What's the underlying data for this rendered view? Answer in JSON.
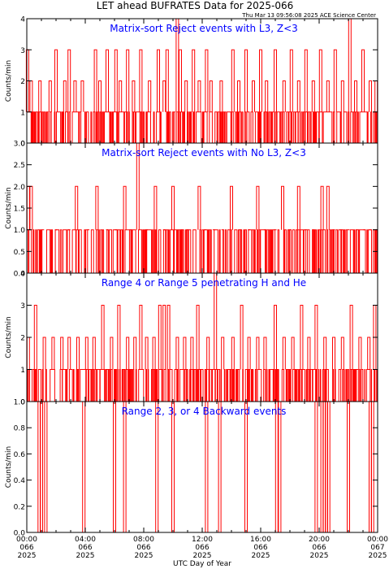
{
  "header": {
    "title": "LET ahead BUFRATES Data for 2025-066",
    "timestamp": "Thu Mar 13 09:56:08 2025 ACE Science Center"
  },
  "colors": {
    "data": "#ff0000",
    "panel_title": "#0000ff",
    "axis": "#000000",
    "background": "#ffffff"
  },
  "chart_data": [
    {
      "type": "line",
      "title": "Matrix-sort Reject events with L3, Z<3",
      "ylabel": "Counts/min",
      "ylim": [
        0,
        4
      ],
      "yticks": [
        "0",
        "1",
        "2",
        "3",
        "4"
      ],
      "xlim": [
        0,
        24
      ],
      "grid": false,
      "series": [
        {
          "baseline": 1,
          "baseline_range": [
            0,
            1
          ],
          "spikes": [
            {
              "x": 0.05,
              "y": 3
            },
            {
              "x": 0.3,
              "y": 2
            },
            {
              "x": 0.9,
              "y": 2
            },
            {
              "x": 1.6,
              "y": 2
            },
            {
              "x": 2.0,
              "y": 3
            },
            {
              "x": 2.6,
              "y": 2
            },
            {
              "x": 2.9,
              "y": 3
            },
            {
              "x": 3.3,
              "y": 2
            },
            {
              "x": 3.8,
              "y": 2
            },
            {
              "x": 4.7,
              "y": 3
            },
            {
              "x": 5.0,
              "y": 2
            },
            {
              "x": 5.5,
              "y": 3
            },
            {
              "x": 6.1,
              "y": 3
            },
            {
              "x": 6.4,
              "y": 2
            },
            {
              "x": 6.9,
              "y": 3
            },
            {
              "x": 7.3,
              "y": 2
            },
            {
              "x": 7.8,
              "y": 3
            },
            {
              "x": 8.4,
              "y": 2
            },
            {
              "x": 9.0,
              "y": 3
            },
            {
              "x": 9.4,
              "y": 2
            },
            {
              "x": 9.6,
              "y": 3
            },
            {
              "x": 10.3,
              "y": 4
            },
            {
              "x": 10.5,
              "y": 3
            },
            {
              "x": 10.9,
              "y": 2
            },
            {
              "x": 11.4,
              "y": 3
            },
            {
              "x": 11.8,
              "y": 2
            },
            {
              "x": 12.3,
              "y": 3
            },
            {
              "x": 12.6,
              "y": 2
            },
            {
              "x": 13.3,
              "y": 2
            },
            {
              "x": 14.1,
              "y": 3
            },
            {
              "x": 14.5,
              "y": 2
            },
            {
              "x": 15.0,
              "y": 3
            },
            {
              "x": 15.5,
              "y": 2
            },
            {
              "x": 16.0,
              "y": 3
            },
            {
              "x": 16.4,
              "y": 2
            },
            {
              "x": 17.0,
              "y": 3
            },
            {
              "x": 17.6,
              "y": 2
            },
            {
              "x": 18.1,
              "y": 3
            },
            {
              "x": 18.6,
              "y": 2
            },
            {
              "x": 19.1,
              "y": 3
            },
            {
              "x": 19.6,
              "y": 2
            },
            {
              "x": 20.1,
              "y": 3
            },
            {
              "x": 20.6,
              "y": 2
            },
            {
              "x": 21.1,
              "y": 3
            },
            {
              "x": 21.6,
              "y": 2
            },
            {
              "x": 22.1,
              "y": 4
            },
            {
              "x": 22.5,
              "y": 2
            },
            {
              "x": 23.0,
              "y": 3
            },
            {
              "x": 23.5,
              "y": 2
            },
            {
              "x": 23.9,
              "y": 2
            }
          ]
        }
      ]
    },
    {
      "type": "line",
      "title": "Matrix-sort Reject events with No L3, Z<3",
      "ylabel": "Counts/min",
      "ylim": [
        0,
        3
      ],
      "yticks": [
        "0.0",
        "0.5",
        "1.0",
        "1.5",
        "2.0",
        "2.5",
        "3.0"
      ],
      "xlim": [
        0,
        24
      ],
      "grid": false,
      "series": [
        {
          "baseline": 1,
          "baseline_range": [
            0,
            1
          ],
          "spikes": [
            {
              "x": 0.1,
              "y": 2
            },
            {
              "x": 0.3,
              "y": 2
            },
            {
              "x": 1.1,
              "y": 1
            },
            {
              "x": 2.0,
              "y": 1
            },
            {
              "x": 2.9,
              "y": 1
            },
            {
              "x": 3.4,
              "y": 2
            },
            {
              "x": 4.2,
              "y": 1
            },
            {
              "x": 4.8,
              "y": 2
            },
            {
              "x": 5.5,
              "y": 1
            },
            {
              "x": 6.1,
              "y": 1
            },
            {
              "x": 6.7,
              "y": 2
            },
            {
              "x": 7.1,
              "y": 1
            },
            {
              "x": 7.6,
              "y": 3
            },
            {
              "x": 8.2,
              "y": 1
            },
            {
              "x": 8.8,
              "y": 2
            },
            {
              "x": 9.4,
              "y": 1
            },
            {
              "x": 10.0,
              "y": 2
            },
            {
              "x": 10.6,
              "y": 1
            },
            {
              "x": 11.0,
              "y": 1
            },
            {
              "x": 11.8,
              "y": 2
            },
            {
              "x": 12.2,
              "y": 1
            },
            {
              "x": 12.8,
              "y": 1
            },
            {
              "x": 13.4,
              "y": 1
            },
            {
              "x": 14.0,
              "y": 2
            },
            {
              "x": 14.6,
              "y": 1
            },
            {
              "x": 15.2,
              "y": 1
            },
            {
              "x": 15.8,
              "y": 2
            },
            {
              "x": 16.3,
              "y": 1
            },
            {
              "x": 17.0,
              "y": 1
            },
            {
              "x": 17.5,
              "y": 2
            },
            {
              "x": 18.0,
              "y": 1
            },
            {
              "x": 18.6,
              "y": 2
            },
            {
              "x": 19.1,
              "y": 1
            },
            {
              "x": 19.6,
              "y": 1
            },
            {
              "x": 20.2,
              "y": 2
            },
            {
              "x": 20.6,
              "y": 2
            },
            {
              "x": 21.0,
              "y": 1
            },
            {
              "x": 21.5,
              "y": 1
            },
            {
              "x": 22.0,
              "y": 1
            },
            {
              "x": 22.6,
              "y": 1
            },
            {
              "x": 23.1,
              "y": 1
            },
            {
              "x": 23.5,
              "y": 1
            },
            {
              "x": 23.9,
              "y": 1
            }
          ]
        }
      ]
    },
    {
      "type": "line",
      "title": "Range 4 or Range 5 penetrating H and He",
      "ylabel": "Counts/min",
      "ylim": [
        0,
        4
      ],
      "yticks": [
        "0",
        "1",
        "2",
        "3",
        "4"
      ],
      "xlim": [
        0,
        24
      ],
      "grid": false,
      "series": [
        {
          "baseline": 1,
          "baseline_range": [
            0,
            1
          ],
          "spikes": [
            {
              "x": 0.1,
              "y": 2
            },
            {
              "x": 0.6,
              "y": 3
            },
            {
              "x": 1.2,
              "y": 2
            },
            {
              "x": 1.8,
              "y": 2
            },
            {
              "x": 2.4,
              "y": 2
            },
            {
              "x": 2.9,
              "y": 2
            },
            {
              "x": 3.5,
              "y": 2
            },
            {
              "x": 4.1,
              "y": 2
            },
            {
              "x": 4.6,
              "y": 2
            },
            {
              "x": 5.2,
              "y": 3
            },
            {
              "x": 5.8,
              "y": 2
            },
            {
              "x": 6.3,
              "y": 3
            },
            {
              "x": 6.9,
              "y": 2
            },
            {
              "x": 7.4,
              "y": 2
            },
            {
              "x": 7.8,
              "y": 3
            },
            {
              "x": 8.2,
              "y": 2
            },
            {
              "x": 8.7,
              "y": 2
            },
            {
              "x": 9.1,
              "y": 3
            },
            {
              "x": 9.4,
              "y": 3
            },
            {
              "x": 9.7,
              "y": 3
            },
            {
              "x": 10.3,
              "y": 2
            },
            {
              "x": 10.8,
              "y": 2
            },
            {
              "x": 11.3,
              "y": 2
            },
            {
              "x": 11.7,
              "y": 3
            },
            {
              "x": 12.4,
              "y": 2
            },
            {
              "x": 12.9,
              "y": 4
            },
            {
              "x": 13.4,
              "y": 2
            },
            {
              "x": 14.1,
              "y": 2
            },
            {
              "x": 14.7,
              "y": 3
            },
            {
              "x": 15.2,
              "y": 2
            },
            {
              "x": 15.8,
              "y": 2
            },
            {
              "x": 16.3,
              "y": 2
            },
            {
              "x": 17.0,
              "y": 3
            },
            {
              "x": 17.6,
              "y": 2
            },
            {
              "x": 18.2,
              "y": 2
            },
            {
              "x": 18.8,
              "y": 3
            },
            {
              "x": 19.3,
              "y": 2
            },
            {
              "x": 19.8,
              "y": 3
            },
            {
              "x": 20.4,
              "y": 2
            },
            {
              "x": 21.0,
              "y": 2
            },
            {
              "x": 21.6,
              "y": 2
            },
            {
              "x": 22.2,
              "y": 3
            },
            {
              "x": 22.8,
              "y": 2
            },
            {
              "x": 23.4,
              "y": 2
            },
            {
              "x": 23.8,
              "y": 3
            }
          ]
        }
      ]
    },
    {
      "type": "line",
      "title": "Range 2, 3, or 4 Backward events",
      "ylabel": "Counts/min",
      "ylim": [
        0,
        1
      ],
      "yticks": [
        "0.0",
        "0.2",
        "0.4",
        "0.6",
        "0.8",
        "1.0"
      ],
      "xlim": [
        0,
        24
      ],
      "xlabel": "UTC Day of Year",
      "xticks": [
        {
          "time": "00:00",
          "day": "066",
          "year": "2025"
        },
        {
          "time": "04:00",
          "day": "066",
          "year": "2025"
        },
        {
          "time": "08:00",
          "day": "066",
          "year": "2025"
        },
        {
          "time": "12:00",
          "day": "066",
          "year": "2025"
        },
        {
          "time": "16:00",
          "day": "066",
          "year": "2025"
        },
        {
          "time": "20:00",
          "day": "066",
          "year": "2025"
        },
        {
          "time": "00:00",
          "day": "067",
          "year": "2025"
        }
      ],
      "grid": false,
      "series": [
        {
          "baseline": 0,
          "spikes": [
            {
              "x": 0.85,
              "y": 1
            },
            {
              "x": 1.0,
              "y": 1
            },
            {
              "x": 1.3,
              "y": 1
            },
            {
              "x": 3.9,
              "y": 1
            },
            {
              "x": 6.0,
              "y": 1
            },
            {
              "x": 6.7,
              "y": 1
            },
            {
              "x": 8.9,
              "y": 1
            },
            {
              "x": 10.0,
              "y": 1
            },
            {
              "x": 12.3,
              "y": 1
            },
            {
              "x": 13.2,
              "y": 1
            },
            {
              "x": 15.0,
              "y": 1
            },
            {
              "x": 17.1,
              "y": 1
            },
            {
              "x": 17.3,
              "y": 1
            },
            {
              "x": 19.8,
              "y": 1
            },
            {
              "x": 20.2,
              "y": 1
            },
            {
              "x": 20.35,
              "y": 1
            },
            {
              "x": 20.5,
              "y": 1
            },
            {
              "x": 20.65,
              "y": 1
            },
            {
              "x": 22.0,
              "y": 1
            },
            {
              "x": 23.5,
              "y": 1
            },
            {
              "x": 23.65,
              "y": 1
            }
          ]
        }
      ]
    }
  ]
}
